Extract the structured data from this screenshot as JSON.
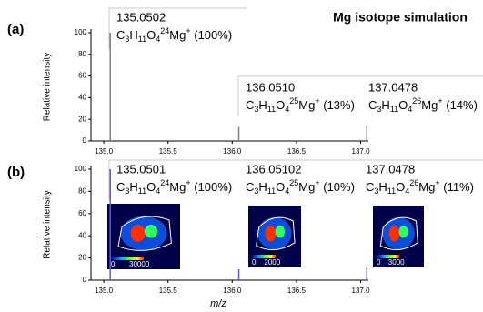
{
  "chart_data": [
    {
      "type": "bar",
      "label": "(a)",
      "title": "Mg isotope simulation",
      "ylabel": "Relative intensity",
      "color": "#7f7f7f",
      "x": [
        135.0502,
        136.051,
        137.0478
      ],
      "values": [
        100,
        13,
        14
      ],
      "xlim": [
        134.9,
        137.06
      ],
      "xticks": [
        {
          "value": 135,
          "label": "135.0"
        },
        {
          "value": 135.5,
          "label": "135.5"
        },
        {
          "value": 136,
          "label": "136.0"
        },
        {
          "value": 136.5,
          "label": "136.5"
        },
        {
          "value": 137,
          "label": "137.0"
        }
      ],
      "ylim": [
        0,
        100
      ],
      "yticks": [
        0,
        20,
        40,
        60,
        80,
        100
      ],
      "annotations": [
        {
          "mz": "135.0502",
          "formula": [
            {
              "text": "C"
            },
            {
              "sub": "3"
            },
            {
              "text": "H"
            },
            {
              "sub": "11"
            },
            {
              "text": "O"
            },
            {
              "sub": "4"
            },
            {
              "sup": "24"
            },
            {
              "text": "Mg"
            },
            {
              "sup": "+"
            },
            {
              "text": " (100%)"
            }
          ]
        },
        {
          "mz": "136.0510",
          "formula": [
            {
              "text": "C"
            },
            {
              "sub": "3"
            },
            {
              "text": "H"
            },
            {
              "sub": "11"
            },
            {
              "text": "O"
            },
            {
              "sub": "4"
            },
            {
              "sup": "25"
            },
            {
              "text": "Mg"
            },
            {
              "sup": "+"
            },
            {
              "text": " (13%)"
            }
          ]
        },
        {
          "mz": "137.0478",
          "formula": [
            {
              "text": "C"
            },
            {
              "sub": "3"
            },
            {
              "text": "H"
            },
            {
              "sub": "11"
            },
            {
              "text": "O"
            },
            {
              "sub": "4"
            },
            {
              "sup": "26"
            },
            {
              "text": "Mg"
            },
            {
              "sup": "+"
            },
            {
              "text": " (14%)"
            }
          ]
        }
      ]
    },
    {
      "type": "bar",
      "label": "(b)",
      "ylabel": "Relative intensity",
      "xlabel": "m/z",
      "color": "#5b5bd6",
      "x": [
        135.0501,
        136.05102,
        137.0478
      ],
      "values": [
        100,
        10,
        11
      ],
      "xlim": [
        134.9,
        137.06
      ],
      "xticks": [
        {
          "value": 135,
          "label": "135.0"
        },
        {
          "value": 135.5,
          "label": "135.5"
        },
        {
          "value": 136,
          "label": "136.0"
        },
        {
          "value": 136.5,
          "label": "136.5"
        },
        {
          "value": 137,
          "label": "137.0"
        }
      ],
      "ylim": [
        0,
        100
      ],
      "yticks": [
        0,
        20,
        40,
        60,
        80,
        100
      ],
      "annotations": [
        {
          "mz": "135.0501",
          "formula": [
            {
              "text": "C"
            },
            {
              "sub": "3"
            },
            {
              "text": "H"
            },
            {
              "sub": "11"
            },
            {
              "text": "O"
            },
            {
              "sub": "4"
            },
            {
              "sup": "24"
            },
            {
              "text": "Mg"
            },
            {
              "sup": "+"
            },
            {
              "text": " (100%)"
            }
          ]
        },
        {
          "mz": "136.05102",
          "formula": [
            {
              "text": "C"
            },
            {
              "sub": "3"
            },
            {
              "text": "H"
            },
            {
              "sub": "11"
            },
            {
              "text": "O"
            },
            {
              "sub": "4"
            },
            {
              "sup": "25"
            },
            {
              "text": "Mg"
            },
            {
              "sup": "+"
            },
            {
              "text": " (10%)"
            }
          ]
        },
        {
          "mz": "137.0478",
          "formula": [
            {
              "text": "C"
            },
            {
              "sub": "3"
            },
            {
              "text": "H"
            },
            {
              "sub": "11"
            },
            {
              "text": "O"
            },
            {
              "sub": "4"
            },
            {
              "sup": "26"
            },
            {
              "text": "Mg"
            },
            {
              "sup": "+"
            },
            {
              "text": " (11%)"
            }
          ]
        }
      ],
      "insets": [
        {
          "min_label": "0",
          "max_label": "30000"
        },
        {
          "min_label": "0",
          "max_label": "2000"
        },
        {
          "min_label": "0",
          "max_label": "3000"
        }
      ]
    }
  ]
}
